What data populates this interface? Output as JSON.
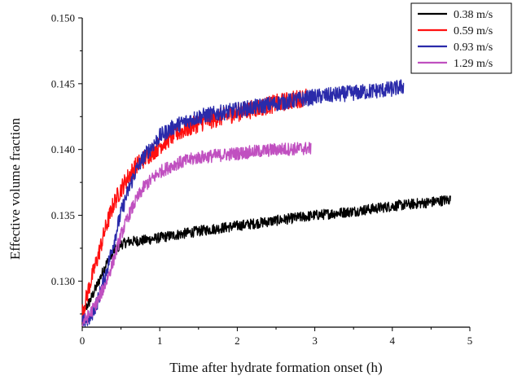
{
  "chart_data": {
    "type": "line",
    "title": "",
    "xlabel": "Time after hydrate formation onset (h)",
    "ylabel": "Effective volume fraction",
    "xlim": [
      0,
      5
    ],
    "ylim": [
      0.1265,
      0.15
    ],
    "x_ticks": [
      "0",
      "1",
      "2",
      "3",
      "4",
      "5"
    ],
    "y_ticks": [
      "0.130",
      "0.135",
      "0.140",
      "0.145",
      "0.150"
    ],
    "grid": false,
    "legend_position": "top-right",
    "series": [
      {
        "name": "0.38 m/s",
        "color": "#000000",
        "noise": 0.0004,
        "x": [
          0,
          0.1,
          0.2,
          0.3,
          0.4,
          0.5,
          0.6,
          0.8,
          1.0,
          1.5,
          2.0,
          2.5,
          3.0,
          3.5,
          4.0,
          4.5,
          4.75
        ],
        "y": [
          0.1275,
          0.1285,
          0.1298,
          0.1312,
          0.1322,
          0.1328,
          0.133,
          0.1331,
          0.1333,
          0.1338,
          0.1342,
          0.1346,
          0.135,
          0.1353,
          0.1357,
          0.136,
          0.1362
        ]
      },
      {
        "name": "0.59 m/s",
        "color": "#ff1010",
        "noise": 0.0007,
        "x": [
          0,
          0.1,
          0.2,
          0.3,
          0.4,
          0.5,
          0.6,
          0.7,
          0.8,
          1.0,
          1.2,
          1.5,
          2.0,
          2.5,
          2.9
        ],
        "y": [
          0.1275,
          0.1298,
          0.1318,
          0.134,
          0.1358,
          0.137,
          0.138,
          0.1388,
          0.1393,
          0.1403,
          0.1412,
          0.142,
          0.1428,
          0.1435,
          0.144
        ]
      },
      {
        "name": "0.93 m/s",
        "color": "#2a2aaa",
        "noise": 0.0006,
        "x": [
          0,
          0.1,
          0.2,
          0.3,
          0.4,
          0.5,
          0.6,
          0.7,
          0.8,
          1.0,
          1.2,
          1.5,
          2.0,
          2.5,
          3.0,
          3.5,
          4.0,
          4.15
        ],
        "y": [
          0.1268,
          0.1272,
          0.1285,
          0.1305,
          0.1328,
          0.1352,
          0.137,
          0.1385,
          0.1395,
          0.141,
          0.1418,
          0.1425,
          0.143,
          0.1435,
          0.144,
          0.1443,
          0.1446,
          0.1448
        ]
      },
      {
        "name": "1.29 m/s",
        "color": "#c050c0",
        "noise": 0.0005,
        "x": [
          0,
          0.1,
          0.2,
          0.3,
          0.4,
          0.5,
          0.6,
          0.7,
          0.8,
          1.0,
          1.2,
          1.5,
          2.0,
          2.5,
          2.95
        ],
        "y": [
          0.1268,
          0.1275,
          0.1285,
          0.1298,
          0.1315,
          0.1335,
          0.135,
          0.1362,
          0.1372,
          0.1383,
          0.1389,
          0.1394,
          0.1397,
          0.14,
          0.1401
        ]
      }
    ]
  }
}
